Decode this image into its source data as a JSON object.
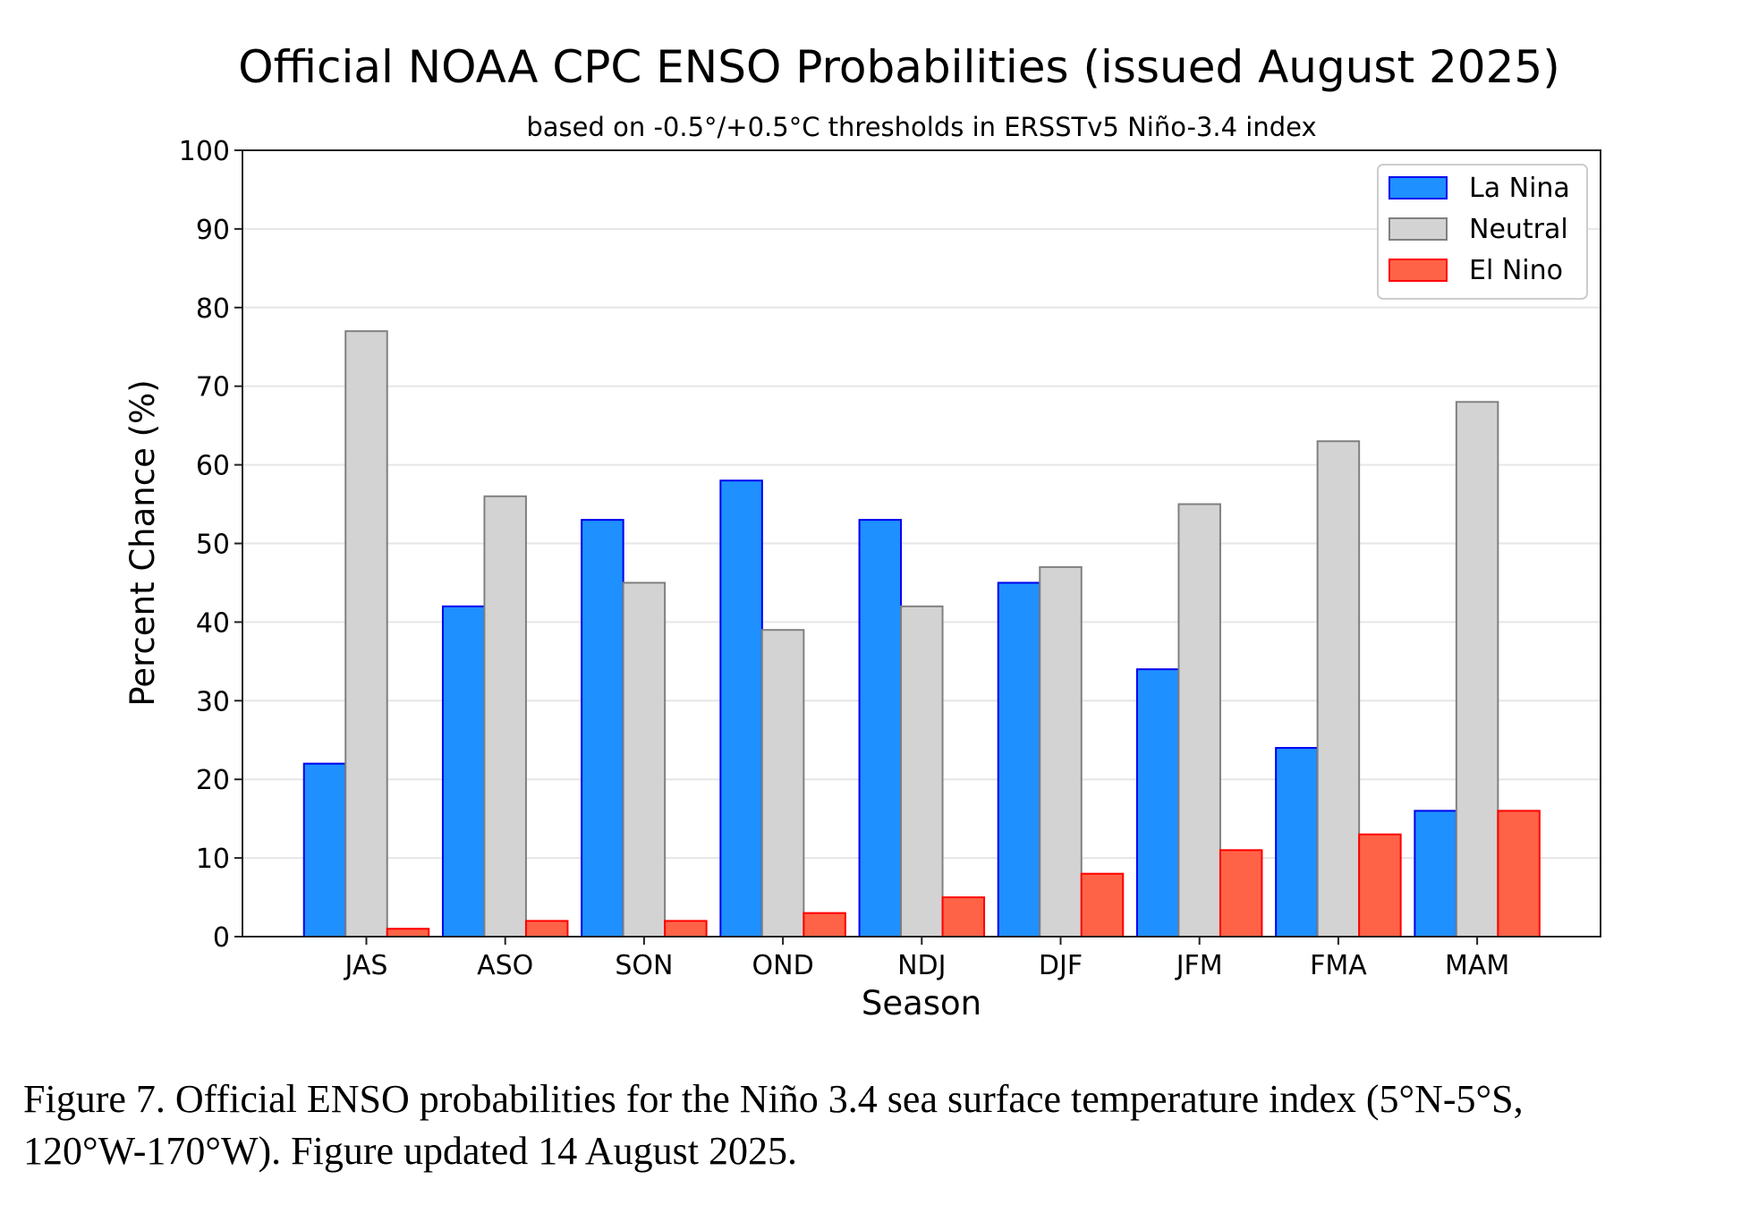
{
  "chart_data": {
    "type": "bar",
    "title": "Official NOAA CPC ENSO Probabilities (issued August 2025)",
    "subtitle": "based on -0.5°/+0.5°C thresholds in ERSSTv5 Niño-3.4 index",
    "xlabel": "Season",
    "ylabel": "Percent Chance (%)",
    "ylim": [
      0,
      100
    ],
    "yticks": [
      0,
      10,
      20,
      30,
      40,
      50,
      60,
      70,
      80,
      90,
      100
    ],
    "grid": "horizontal",
    "legend_position": "top-right",
    "categories": [
      "JAS",
      "ASO",
      "SON",
      "OND",
      "NDJ",
      "DJF",
      "JFM",
      "FMA",
      "MAM"
    ],
    "series": [
      {
        "name": "La Nina",
        "values": [
          22,
          42,
          53,
          58,
          53,
          45,
          34,
          24,
          16
        ],
        "color": "#1e90ff",
        "edge": "#0000ee"
      },
      {
        "name": "Neutral",
        "values": [
          77,
          56,
          45,
          39,
          42,
          47,
          55,
          63,
          68
        ],
        "color": "#d3d3d3",
        "edge": "#808080"
      },
      {
        "name": "El Nino",
        "values": [
          1,
          2,
          2,
          3,
          5,
          8,
          11,
          13,
          16
        ],
        "color": "#ff6347",
        "edge": "#ff0000"
      }
    ]
  },
  "caption": {
    "line1": "Figure 7. Official ENSO probabilities for the Niño 3.4 sea surface temperature index (5°N-5°S,",
    "line2": "120°W-170°W). Figure updated 14 August 2025."
  }
}
